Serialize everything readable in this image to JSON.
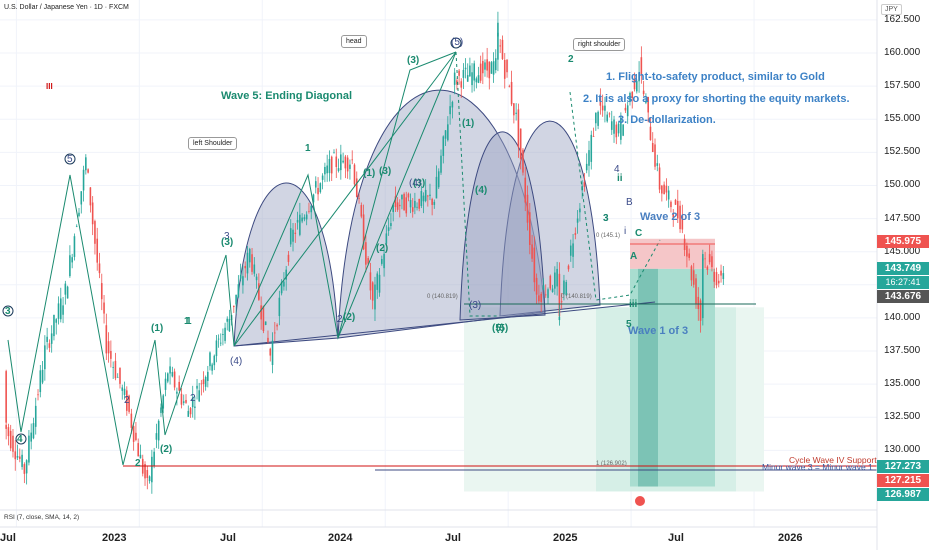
{
  "header": {
    "symbol": "U.S. Dollar / Japanese Yen · 1D · FXCM",
    "unit": "JPY"
  },
  "indicator": {
    "label": "RSI (7, close, SMA, 14, 2)"
  },
  "colors": {
    "bull": "#26a69a",
    "bear": "#ef5350",
    "accent": "#3d82c6",
    "wave": "#1a8a6f",
    "pattern_fill": "#9aa2c2"
  },
  "chart_data": {
    "type": "candlestick",
    "title": "",
    "xlabel": "",
    "ylabel": "",
    "ylim": [
      125.5,
      164.0
    ],
    "grid": true,
    "y_ticks": [
      "162.500",
      "160.000",
      "157.500",
      "155.000",
      "152.500",
      "150.000",
      "147.500",
      "145.000",
      "142.500",
      "140.000",
      "137.500",
      "135.000",
      "132.500",
      "130.000"
    ],
    "x_ticks": [
      "Jul",
      "2023",
      "Jul",
      "2024",
      "Jul",
      "2025",
      "Jul",
      "2026"
    ],
    "price_tags": [
      {
        "value": "145.975",
        "color": "#ef5350"
      },
      {
        "value": "143.749",
        "color": "#26a69a"
      },
      {
        "value": "16:27:41",
        "color": "#26a69a"
      },
      {
        "value": "143.676",
        "color": "#555555"
      },
      {
        "value": "127.273",
        "color": "#26a69a"
      },
      {
        "value": "127.215",
        "color": "#ef5350"
      },
      {
        "value": "126.987",
        "color": "#26a69a"
      }
    ],
    "price_path": [
      [
        "2022-06",
        136.0
      ],
      [
        "2022-06",
        132.0
      ],
      [
        "2022-07",
        128.5
      ],
      [
        "2022-08",
        137.5
      ],
      [
        "2022-09",
        142.0
      ],
      [
        "2022-10",
        151.9
      ],
      [
        "2022-11",
        138.0
      ],
      [
        "2022-12",
        133.5
      ],
      [
        "2023-01",
        127.2
      ],
      [
        "2023-02",
        136.0
      ],
      [
        "2023-03",
        133.0
      ],
      [
        "2023-05",
        140.0
      ],
      [
        "2023-06",
        145.0
      ],
      [
        "2023-07",
        137.2
      ],
      [
        "2023-08",
        146.0
      ],
      [
        "2023-09",
        149.0
      ],
      [
        "2023-10",
        151.7
      ],
      [
        "2023-11",
        151.9
      ],
      [
        "2023-12",
        141.0
      ],
      [
        "2024-01",
        148.5
      ],
      [
        "2024-03",
        149.0
      ],
      [
        "2024-04",
        158.0
      ],
      [
        "2024-06",
        159.0
      ],
      [
        "2024-06",
        161.9
      ],
      [
        "2024-07",
        155.0
      ],
      [
        "2024-08",
        141.7
      ],
      [
        "2024-09",
        143.0
      ],
      [
        "2024-09",
        139.6
      ],
      [
        "2024-10",
        148.0
      ],
      [
        "2024-11",
        156.0
      ],
      [
        "2024-12",
        154.0
      ],
      [
        "2025-01",
        158.9
      ],
      [
        "2025-02",
        150.0
      ],
      [
        "2025-03",
        147.5
      ],
      [
        "2025-04",
        140.0
      ],
      [
        "2025-04",
        145.0
      ],
      [
        "2025-05",
        142.5
      ],
      [
        "2025-05",
        143.7
      ]
    ],
    "series": [
      {
        "name": "Wave 5: Ending Diagonal"
      }
    ],
    "levels": [
      {
        "label": "0 (140.819)",
        "value": 140.819
      },
      {
        "label": "0 (140.819)",
        "value": 140.819
      },
      {
        "label": "1 (126.902)",
        "value": 126.902
      },
      {
        "label": "Cycle Wave IV Support",
        "value": 127.2
      },
      {
        "label": "Minor wave 3 = Minor wave 1",
        "value": 127.0
      }
    ],
    "position": {
      "entry": 143.7,
      "stop": 145.975,
      "target": 127.273
    },
    "annotations": {
      "shoulders": [
        "head",
        "left Shoulder",
        "right shoulder"
      ],
      "notes": [
        "1. Flight-to-safety product, similar to Gold",
        "2. It is also a proxy for shorting the equity markets.",
        "3. De-dollarization."
      ],
      "wave_2_of_3": "Wave 2 of 3",
      "wave_1_of_3": "Wave 1 of 3",
      "roman": "III",
      "small_fib": "0 (145.1)",
      "wave_labels": [
        "5",
        "4",
        "3",
        "3",
        "(1)",
        "(3)",
        "(4)",
        "(2)",
        "1",
        "2",
        "(2)",
        "1",
        "2",
        "2",
        "(3)",
        "(5)",
        "(1)",
        "(3)",
        "(4)",
        "(2)",
        "1",
        "2",
        "(3)",
        "(5)",
        "3",
        "(1)",
        "(4)",
        "(3)",
        "(5)",
        "2",
        "4",
        "3",
        "A",
        "B",
        "C",
        "ii",
        "i",
        "iii",
        "5"
      ]
    }
  }
}
